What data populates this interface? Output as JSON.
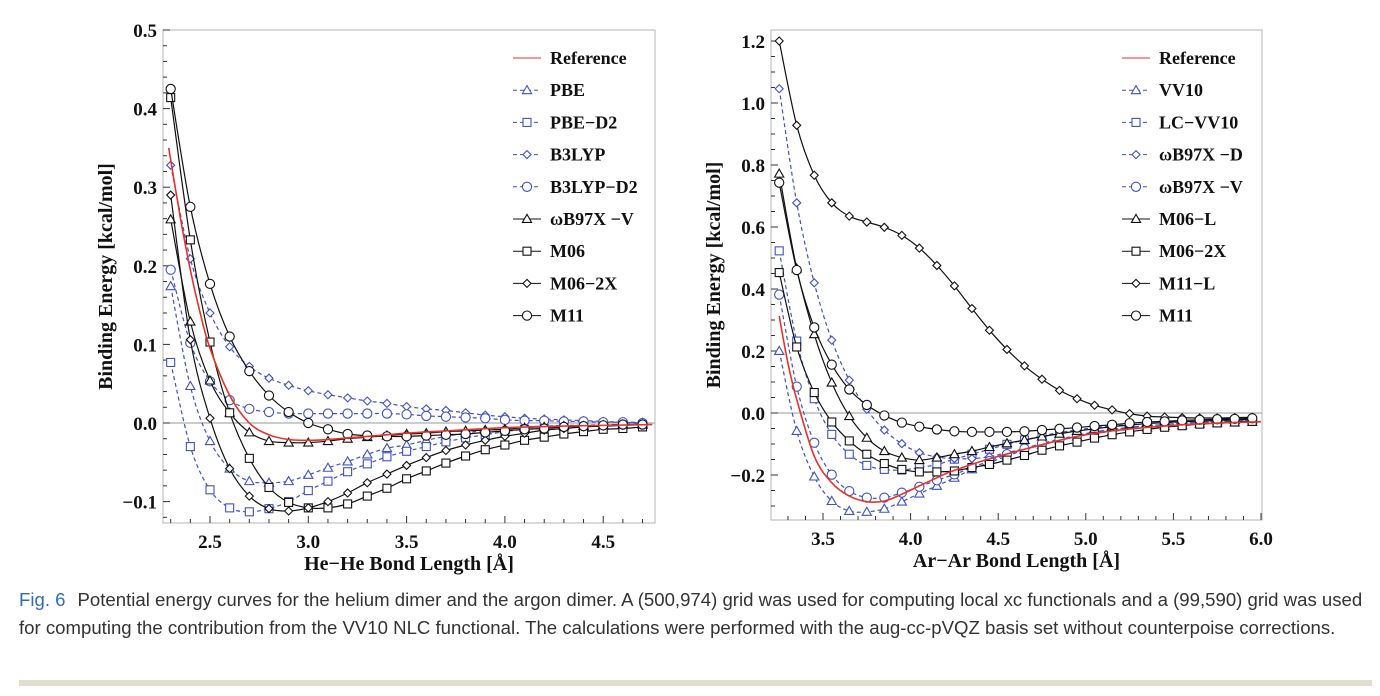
{
  "caption": {
    "label": "Fig. 6",
    "text": "Potential energy curves for the helium dimer and the argon dimer. A (500,974) grid was used for computing local xc functionals and a (99,590) grid was used for computing the contribution from the VV10 NLC functional. The calculations were performed with the aug-cc-pVQZ basis set without counterpoise corrections."
  },
  "colors": {
    "reference": "#e8322a",
    "blue": "#3e52c4",
    "black": "#111111",
    "zero_line": "#9a9a9a"
  },
  "chart_data": [
    {
      "type": "line",
      "xlabel": "He−He Bond Length [Å]",
      "ylabel": "Binding Energy [kcal/mol]",
      "xlim": [
        2.256,
        4.75
      ],
      "ylim": [
        -0.128,
        0.5
      ],
      "x_ticks": [
        {
          "v": 2.5,
          "label": "2.5"
        },
        {
          "v": 3.0,
          "label": "3.0"
        },
        {
          "v": 3.5,
          "label": "3.5"
        },
        {
          "v": 4.0,
          "label": "4.0"
        },
        {
          "v": 4.5,
          "label": "4.5"
        }
      ],
      "y_ticks": [
        {
          "v": 0.5,
          "label": "0.5"
        },
        {
          "v": 0.4,
          "label": "0.4"
        },
        {
          "v": 0.3,
          "label": "0.3"
        },
        {
          "v": 0.2,
          "label": "0.2"
        },
        {
          "v": 0.1,
          "label": "0.1"
        },
        {
          "v": 0.0,
          "label": "0.0"
        },
        {
          "v": -0.1,
          "label": "−0.1"
        }
      ],
      "grid": false,
      "zero_line": true,
      "legend_position": "top-right",
      "x": [
        2.3,
        2.4,
        2.5,
        2.6,
        2.7,
        2.8,
        2.9,
        3.0,
        3.1,
        3.2,
        3.3,
        3.4,
        3.5,
        3.6,
        3.7,
        3.8,
        3.9,
        4.0,
        4.1,
        4.2,
        4.3,
        4.4,
        4.5,
        4.6,
        4.7
      ],
      "series": [
        {
          "name": "Reference",
          "color": "#e8322a",
          "style": "solid",
          "marker": "none",
          "x": [
            2.29,
            2.35,
            2.4,
            2.45,
            2.5,
            2.6,
            2.7,
            2.8,
            2.9,
            3.0,
            3.1,
            3.2,
            3.3,
            3.5,
            3.7,
            4.0,
            4.3,
            4.75
          ],
          "values": [
            0.35,
            0.26,
            0.195,
            0.14,
            0.095,
            0.035,
            0.0,
            -0.015,
            -0.021,
            -0.022,
            -0.021,
            -0.019,
            -0.017,
            -0.013,
            -0.01,
            -0.006,
            -0.004,
            -0.002
          ]
        },
        {
          "name": "PBE",
          "color": "#3e52c4",
          "style": "dashed",
          "marker": "triangle",
          "values": [
            0.174,
            0.047,
            -0.023,
            -0.058,
            -0.074,
            -0.076,
            -0.074,
            -0.066,
            -0.057,
            -0.049,
            -0.04,
            -0.032,
            -0.028,
            -0.022,
            -0.017,
            -0.013,
            -0.009,
            -0.008,
            -0.005,
            -0.004,
            -0.003,
            -0.003,
            -0.002,
            -0.002,
            -0.001
          ]
        },
        {
          "name": "PBE−D2",
          "color": "#3e52c4",
          "style": "dashed",
          "marker": "square",
          "values": [
            0.077,
            -0.03,
            -0.085,
            -0.108,
            -0.113,
            -0.109,
            -0.1,
            -0.086,
            -0.074,
            -0.062,
            -0.052,
            -0.043,
            -0.036,
            -0.03,
            -0.024,
            -0.019,
            -0.015,
            -0.011,
            -0.008,
            -0.007,
            -0.005,
            -0.004,
            -0.003,
            -0.002,
            -0.002
          ]
        },
        {
          "name": "B3LYP",
          "color": "#3e52c4",
          "style": "dashed",
          "marker": "diamond",
          "values": [
            0.328,
            0.209,
            0.14,
            0.097,
            0.072,
            0.057,
            0.048,
            0.041,
            0.036,
            0.032,
            0.028,
            0.025,
            0.021,
            0.018,
            0.016,
            0.013,
            0.01,
            0.008,
            0.006,
            0.005,
            0.004,
            0.003,
            0.002,
            0.001,
            0.001
          ]
        },
        {
          "name": "B3LYP−D2",
          "color": "#3e52c4",
          "style": "dashed",
          "marker": "circle",
          "values": [
            0.195,
            0.102,
            0.053,
            0.029,
            0.018,
            0.014,
            0.012,
            0.012,
            0.012,
            0.012,
            0.012,
            0.012,
            0.011,
            0.009,
            0.008,
            0.007,
            0.006,
            0.004,
            0.003,
            0.003,
            0.002,
            0.002,
            0.001,
            0.001,
            0.0
          ]
        },
        {
          "name": "ωB97X −V",
          "color": "#111111",
          "style": "solid",
          "marker": "triangle",
          "values": [
            0.259,
            0.129,
            0.054,
            0.013,
            -0.012,
            -0.023,
            -0.025,
            -0.025,
            -0.023,
            -0.02,
            -0.018,
            -0.016,
            -0.014,
            -0.013,
            -0.011,
            -0.01,
            -0.009,
            -0.008,
            -0.006,
            -0.005,
            -0.004,
            -0.004,
            -0.003,
            -0.002,
            -0.002
          ]
        },
        {
          "name": "M06",
          "color": "#111111",
          "style": "solid",
          "marker": "square",
          "values": [
            0.414,
            0.233,
            0.103,
            0.013,
            -0.045,
            -0.082,
            -0.101,
            -0.108,
            -0.108,
            -0.103,
            -0.093,
            -0.083,
            -0.071,
            -0.061,
            -0.051,
            -0.042,
            -0.034,
            -0.028,
            -0.022,
            -0.018,
            -0.014,
            -0.011,
            -0.008,
            -0.007,
            -0.005
          ]
        },
        {
          "name": "M06−2X",
          "color": "#111111",
          "style": "solid",
          "marker": "diamond",
          "values": [
            0.29,
            0.106,
            0.006,
            -0.058,
            -0.093,
            -0.109,
            -0.112,
            -0.108,
            -0.1,
            -0.089,
            -0.076,
            -0.065,
            -0.054,
            -0.044,
            -0.035,
            -0.028,
            -0.022,
            -0.017,
            -0.013,
            -0.009,
            -0.007,
            -0.005,
            -0.004,
            -0.003,
            -0.002
          ]
        },
        {
          "name": "M11",
          "color": "#111111",
          "style": "solid",
          "marker": "circle",
          "values": [
            0.425,
            0.275,
            0.177,
            0.11,
            0.066,
            0.035,
            0.014,
            0.0,
            -0.008,
            -0.014,
            -0.016,
            -0.017,
            -0.017,
            -0.016,
            -0.015,
            -0.014,
            -0.012,
            -0.01,
            -0.008,
            -0.007,
            -0.005,
            -0.004,
            -0.003,
            -0.002,
            -0.002
          ]
        }
      ]
    },
    {
      "type": "line",
      "xlabel": "Ar−Ar Bond Length [Å]",
      "ylabel": "Binding Energy [kcal/mol]",
      "xlim": [
        3.21,
        6.0
      ],
      "ylim": [
        -0.345,
        1.235
      ],
      "x_ticks": [
        {
          "v": 3.5,
          "label": "3.5"
        },
        {
          "v": 4.0,
          "label": "4.0"
        },
        {
          "v": 4.5,
          "label": "4.5"
        },
        {
          "v": 5.0,
          "label": "5.0"
        },
        {
          "v": 5.5,
          "label": "5.5"
        },
        {
          "v": 6.0,
          "label": "6.0"
        }
      ],
      "y_ticks": [
        {
          "v": 1.2,
          "label": "1.2"
        },
        {
          "v": 1.0,
          "label": "1.0"
        },
        {
          "v": 0.8,
          "label": "0.8"
        },
        {
          "v": 0.6,
          "label": "0.6"
        },
        {
          "v": 0.4,
          "label": "0.4"
        },
        {
          "v": 0.2,
          "label": "0.2"
        },
        {
          "v": 0.0,
          "label": "0.0"
        },
        {
          "v": -0.2,
          "label": "−0.2"
        }
      ],
      "grid": false,
      "zero_line": true,
      "legend_position": "top-right",
      "x": [
        3.25,
        3.35,
        3.45,
        3.55,
        3.65,
        3.75,
        3.85,
        3.95,
        4.05,
        4.15,
        4.25,
        4.35,
        4.45,
        4.55,
        4.65,
        4.75,
        4.85,
        4.95,
        5.05,
        5.15,
        5.25,
        5.35,
        5.45,
        5.55,
        5.65,
        5.75,
        5.85,
        5.95
      ],
      "series": [
        {
          "name": "Reference",
          "color": "#e8322a",
          "style": "solid",
          "marker": "none",
          "x": [
            3.25,
            3.3,
            3.35,
            3.45,
            3.55,
            3.65,
            3.75,
            3.85,
            3.95,
            4.05,
            4.15,
            4.25,
            4.5,
            5.0,
            5.5,
            6.0
          ],
          "values": [
            0.313,
            0.16,
            0.044,
            -0.139,
            -0.225,
            -0.268,
            -0.286,
            -0.284,
            -0.262,
            -0.235,
            -0.209,
            -0.185,
            -0.14,
            -0.07,
            -0.04,
            -0.028
          ]
        },
        {
          "name": "VV10",
          "color": "#3e52c4",
          "style": "dashed",
          "marker": "triangle",
          "values": [
            0.2,
            -0.058,
            -0.205,
            -0.284,
            -0.316,
            -0.319,
            -0.309,
            -0.286,
            -0.26,
            -0.235,
            -0.209,
            -0.182,
            -0.16,
            -0.139,
            -0.119,
            -0.103,
            -0.088,
            -0.076,
            -0.067,
            -0.059,
            -0.053,
            -0.047,
            -0.042,
            -0.039,
            -0.035,
            -0.033,
            -0.031,
            -0.029
          ]
        },
        {
          "name": "LC−VV10",
          "color": "#3e52c4",
          "style": "dashed",
          "marker": "square",
          "values": [
            0.523,
            0.232,
            0.046,
            -0.069,
            -0.133,
            -0.169,
            -0.182,
            -0.184,
            -0.176,
            -0.166,
            -0.149,
            -0.133,
            -0.117,
            -0.101,
            -0.087,
            -0.074,
            -0.063,
            -0.055,
            -0.047,
            -0.042,
            -0.038,
            -0.034,
            -0.031,
            -0.029,
            -0.027,
            -0.026,
            -0.025,
            -0.024
          ]
        },
        {
          "name": "ωB97X −D",
          "color": "#3e52c4",
          "style": "dashed",
          "marker": "diamond",
          "values": [
            1.046,
            0.678,
            0.42,
            0.235,
            0.106,
            0.012,
            -0.055,
            -0.099,
            -0.128,
            -0.142,
            -0.147,
            -0.147,
            -0.141,
            -0.128,
            -0.115,
            -0.101,
            -0.087,
            -0.074,
            -0.063,
            -0.055,
            -0.047,
            -0.042,
            -0.037,
            -0.033,
            -0.03,
            -0.028,
            -0.026,
            -0.024
          ]
        },
        {
          "name": "ωB97X −V",
          "color": "#3e52c4",
          "style": "dashed",
          "marker": "circle",
          "values": [
            0.382,
            0.085,
            -0.096,
            -0.199,
            -0.252,
            -0.273,
            -0.273,
            -0.257,
            -0.238,
            -0.217,
            -0.198,
            -0.176,
            -0.155,
            -0.133,
            -0.115,
            -0.098,
            -0.085,
            -0.072,
            -0.061,
            -0.053,
            -0.046,
            -0.041,
            -0.037,
            -0.033,
            -0.03,
            -0.028,
            -0.026,
            -0.024
          ]
        },
        {
          "name": "M06−L",
          "color": "#111111",
          "style": "solid",
          "marker": "triangle",
          "values": [
            0.772,
            0.466,
            0.254,
            0.098,
            -0.01,
            -0.08,
            -0.123,
            -0.144,
            -0.152,
            -0.144,
            -0.133,
            -0.123,
            -0.11,
            -0.098,
            -0.087,
            -0.076,
            -0.067,
            -0.058,
            -0.051,
            -0.044,
            -0.039,
            -0.034,
            -0.031,
            -0.028,
            -0.026,
            -0.024,
            -0.022,
            -0.02
          ]
        },
        {
          "name": "M06−2X",
          "color": "#111111",
          "style": "solid",
          "marker": "square",
          "values": [
            0.453,
            0.213,
            0.066,
            -0.029,
            -0.09,
            -0.133,
            -0.163,
            -0.182,
            -0.19,
            -0.19,
            -0.187,
            -0.176,
            -0.166,
            -0.152,
            -0.137,
            -0.12,
            -0.106,
            -0.094,
            -0.081,
            -0.07,
            -0.061,
            -0.053,
            -0.046,
            -0.041,
            -0.036,
            -0.032,
            -0.029,
            -0.027
          ]
        },
        {
          "name": "M11−L",
          "color": "#111111",
          "style": "solid",
          "marker": "diamond",
          "values": [
            1.2,
            0.928,
            0.767,
            0.678,
            0.635,
            0.616,
            0.599,
            0.573,
            0.532,
            0.476,
            0.41,
            0.337,
            0.267,
            0.205,
            0.152,
            0.109,
            0.073,
            0.046,
            0.025,
            0.01,
            -0.002,
            -0.01,
            -0.013,
            -0.015,
            -0.016,
            -0.016,
            -0.015,
            -0.014
          ]
        },
        {
          "name": "M11",
          "color": "#111111",
          "style": "solid",
          "marker": "circle",
          "values": [
            0.743,
            0.461,
            0.276,
            0.156,
            0.076,
            0.026,
            -0.008,
            -0.031,
            -0.044,
            -0.053,
            -0.059,
            -0.061,
            -0.061,
            -0.061,
            -0.059,
            -0.055,
            -0.051,
            -0.047,
            -0.042,
            -0.038,
            -0.033,
            -0.029,
            -0.027,
            -0.024,
            -0.022,
            -0.02,
            -0.019,
            -0.017
          ]
        }
      ]
    }
  ]
}
